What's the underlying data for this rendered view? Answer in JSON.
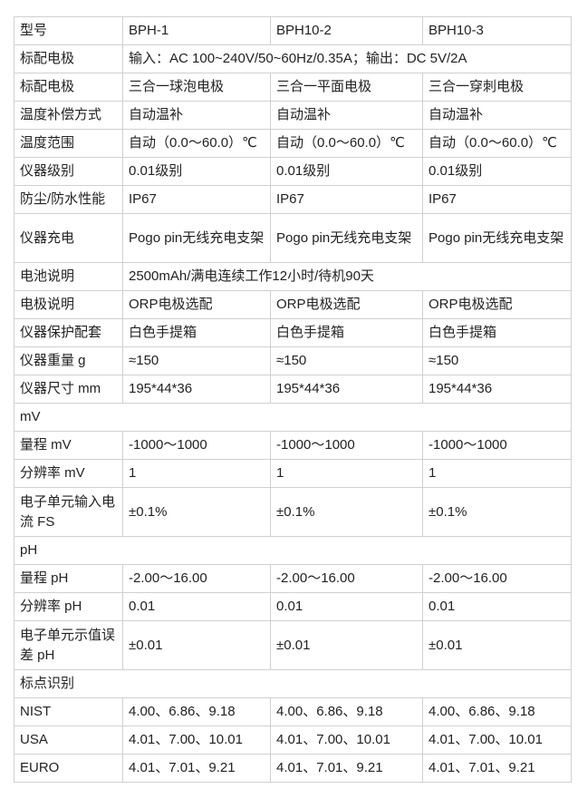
{
  "spec_table": {
    "rows": [
      {
        "cells": [
          "型号",
          "BPH-1",
          "BPH10-2",
          "BPH10-3"
        ]
      },
      {
        "cells": [
          "标配电极",
          "输入：AC 100~240V/50~60Hz/0.35A；输出：DC 5V/2A"
        ],
        "span": true
      },
      {
        "cells": [
          "标配电极",
          "三合一球泡电极",
          "三合一平面电极",
          "三合一穿刺电极"
        ]
      },
      {
        "cells": [
          "温度补偿方式",
          "自动温补",
          "自动温补",
          "自动温补"
        ]
      },
      {
        "cells": [
          "温度范围",
          "自动（0.0～60.0）℃",
          "自动（0.0～60.0）℃",
          "自动（0.0～60.0）℃"
        ]
      },
      {
        "cells": [
          "仪器级别",
          "0.01级别",
          "0.01级别",
          "0.01级别"
        ]
      },
      {
        "cells": [
          "防尘/防水性能",
          "IP67",
          "IP67",
          "IP67"
        ]
      },
      {
        "cells": [
          "仪器充电",
          "Pogo pin无线充电支架",
          "Pogo pin无线充电支架",
          "Pogo pin无线充电支架"
        ],
        "tall": true
      },
      {
        "cells": [
          "电池说明",
          "2500mAh/满电连续工作12小时/待机90天"
        ],
        "span": true
      },
      {
        "cells": [
          "电极说明",
          "ORP电极选配",
          "ORP电极选配",
          "ORP电极选配"
        ]
      },
      {
        "cells": [
          "仪器保护配套",
          "白色手提箱",
          "白色手提箱",
          "白色手提箱"
        ]
      },
      {
        "cells": [
          "仪器重量 g",
          "≈150",
          "≈150",
          "≈150"
        ]
      },
      {
        "cells": [
          "仪器尺寸 mm",
          "195*44*36",
          "195*44*36",
          "195*44*36"
        ]
      },
      {
        "cells": [
          "mV"
        ],
        "full": true
      },
      {
        "cells": [
          "量程 mV",
          "-1000～1000",
          "-1000～1000",
          "-1000～1000"
        ]
      },
      {
        "cells": [
          "分辨率 mV",
          "1",
          "1",
          "1"
        ]
      },
      {
        "cells": [
          "电子单元输入电流 FS",
          "±0.1%",
          "±0.1%",
          "±0.1%"
        ],
        "tall": true
      },
      {
        "cells": [
          "pH"
        ],
        "full": true
      },
      {
        "cells": [
          "量程 pH",
          "-2.00～16.00",
          "-2.00～16.00",
          "-2.00～16.00"
        ]
      },
      {
        "cells": [
          "分辨率 pH",
          "0.01",
          "0.01",
          "0.01"
        ]
      },
      {
        "cells": [
          "电子单元示值误差 pH",
          "±0.01",
          "±0.01",
          "±0.01"
        ],
        "tall": true
      },
      {
        "cells": [
          "标点识别"
        ],
        "full": true
      },
      {
        "cells": [
          "NIST",
          "4.00、6.86、9.18",
          "4.00、6.86、9.18",
          "4.00、6.86、9.18"
        ]
      },
      {
        "cells": [
          "USA",
          "4.01、7.00、10.01",
          "4.01、7.00、10.01",
          "4.01、7.00、10.01"
        ]
      },
      {
        "cells": [
          "EURO",
          "4.01、7.01、9.21",
          "4.01、7.01、9.21",
          "4.01、7.01、9.21"
        ]
      }
    ]
  }
}
